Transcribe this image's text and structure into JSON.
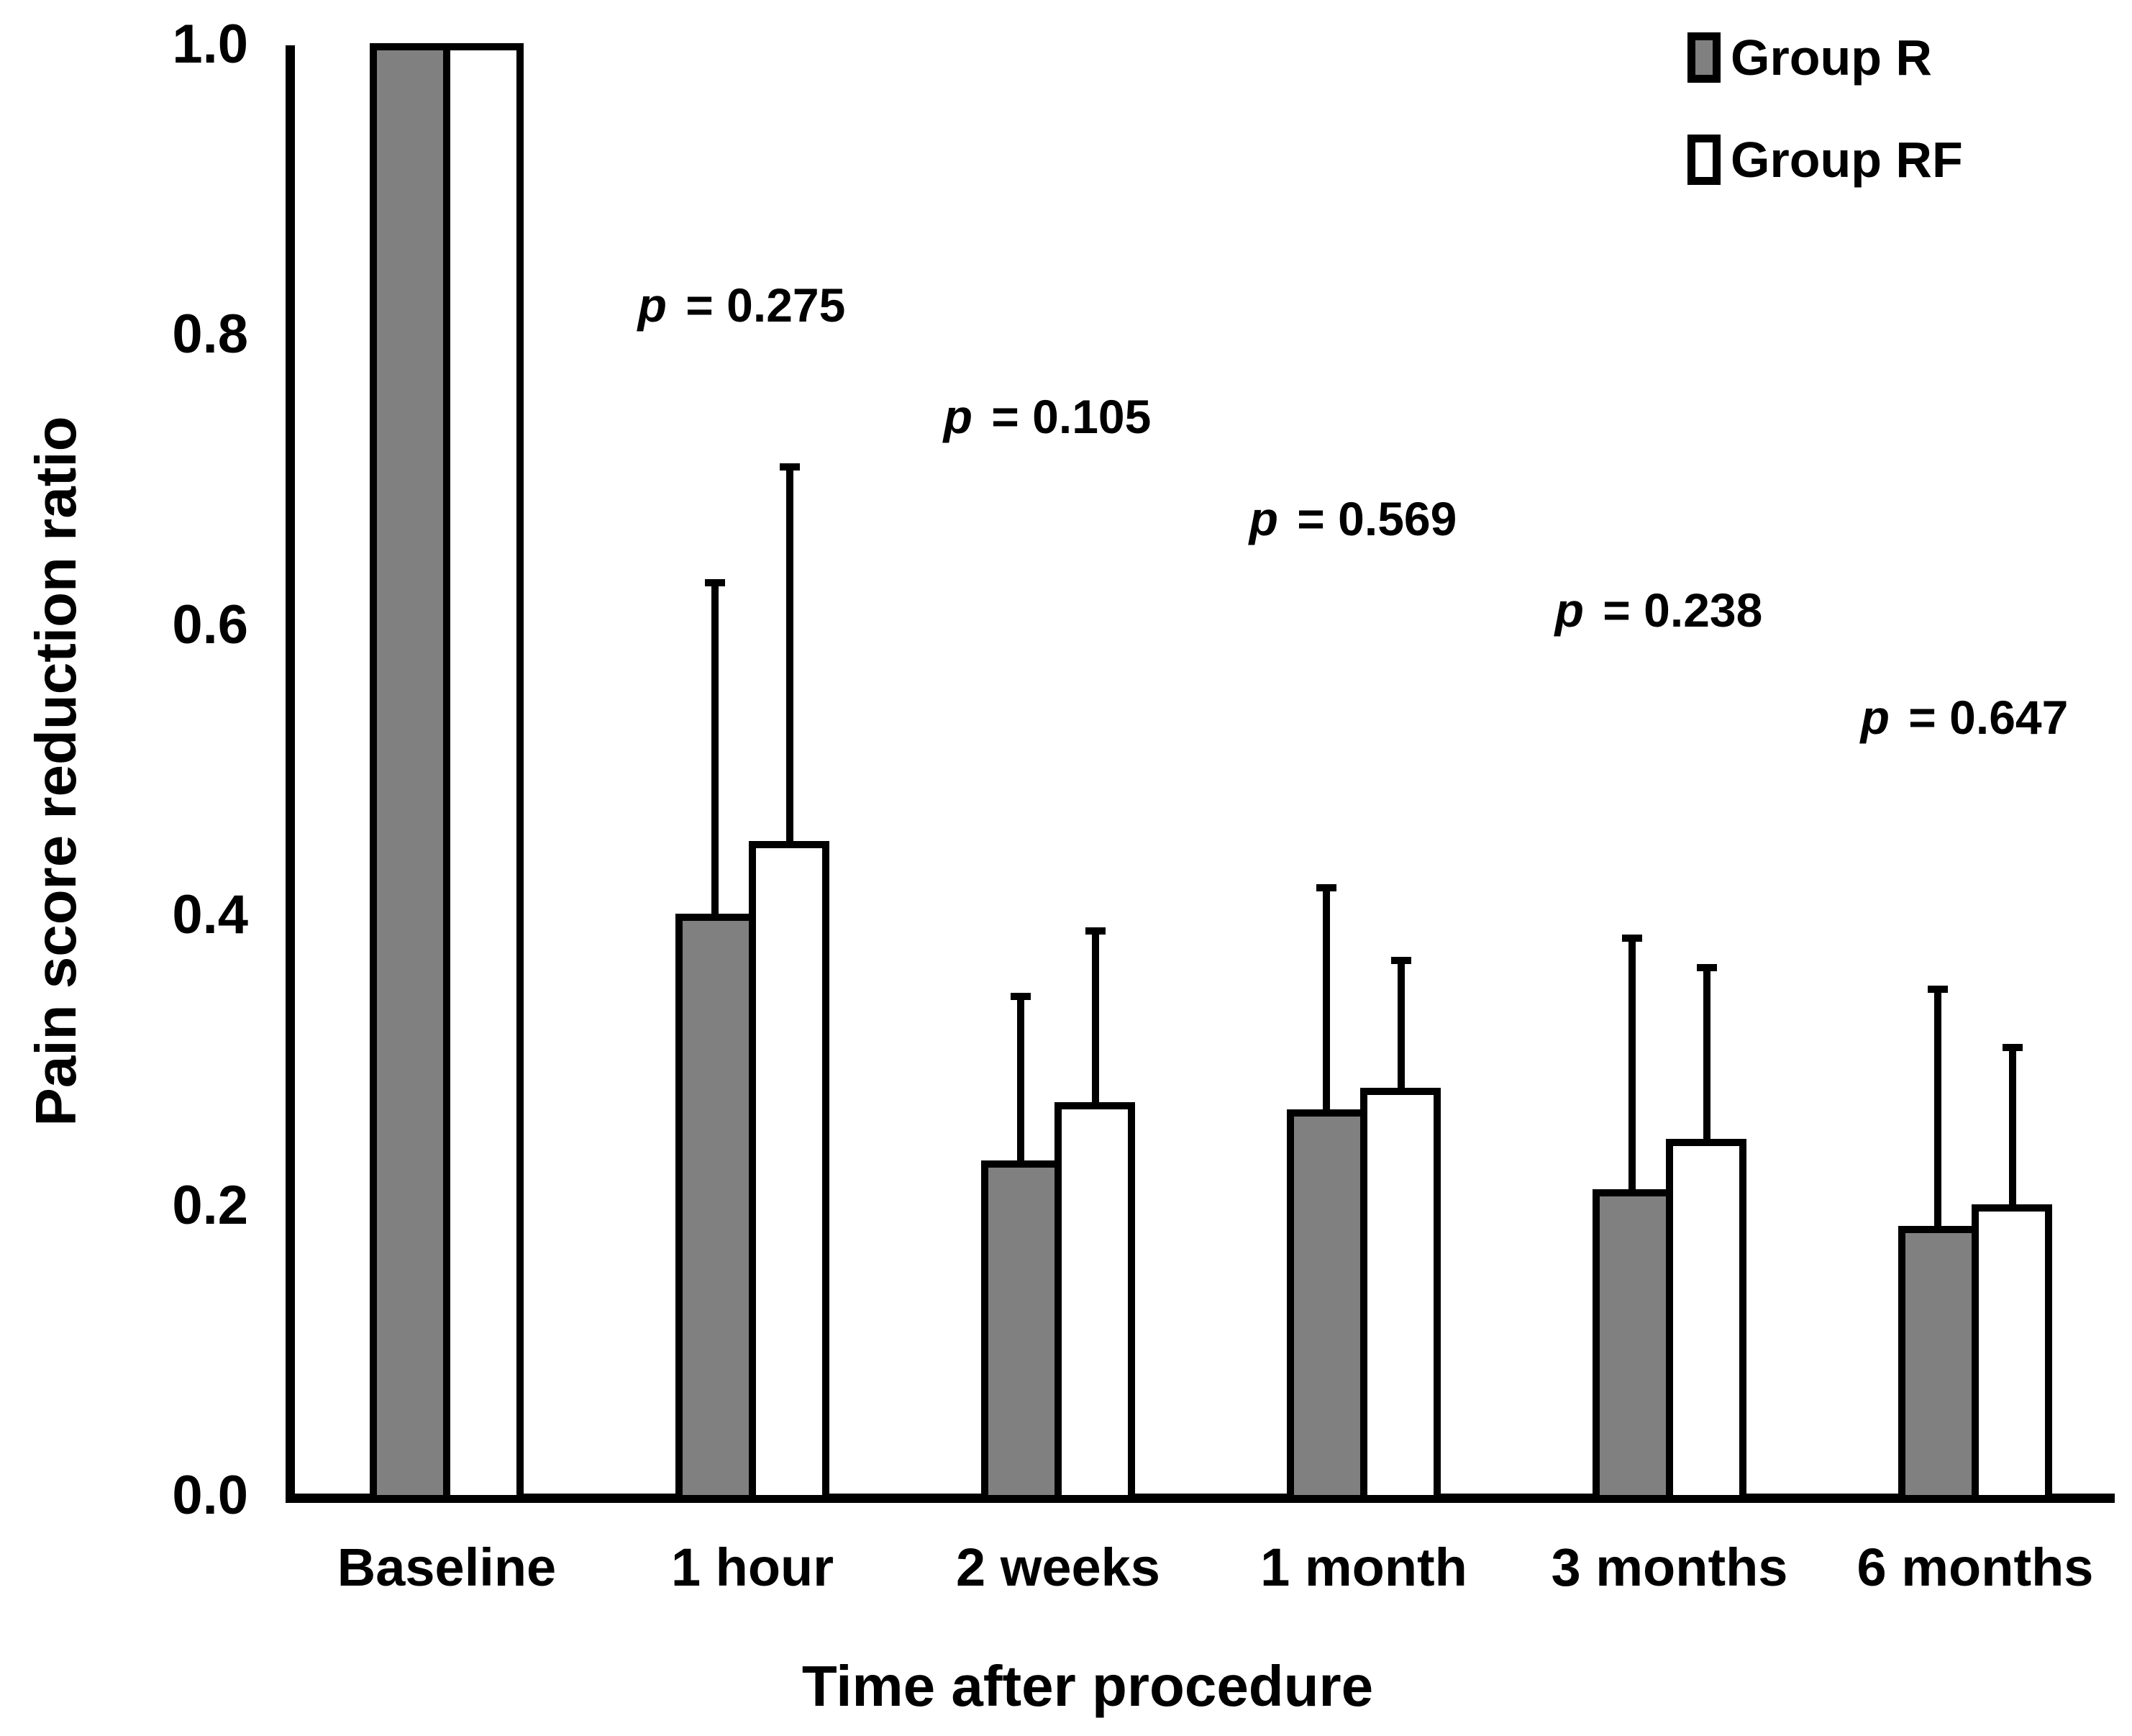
{
  "figure": {
    "background": "#ffffff",
    "axis_color": "#000000",
    "text_color": "#000000"
  },
  "chart_data": {
    "type": "bar",
    "title": "",
    "xlabel": "Time after procedure",
    "ylabel": "Pain score reduction ratio",
    "categories": [
      "Baseline",
      "1 hour",
      "2 weeks",
      "1 month",
      "3 months",
      "6 months"
    ],
    "y_ticks": [
      {
        "label": "1.0",
        "value": 1.0
      },
      {
        "label": "0.8",
        "value": 0.8
      },
      {
        "label": "0.6",
        "value": 0.6
      },
      {
        "label": "0.4",
        "value": 0.4
      },
      {
        "label": "0.2",
        "value": 0.2
      },
      {
        "label": "0.0",
        "value": 0.0
      }
    ],
    "ylim": [
      0,
      1
    ],
    "grid": false,
    "legend_position": "top-right",
    "bar_fill_gray": "#808080",
    "bar_fill_white": "#ffffff",
    "series": [
      {
        "name": "Group R",
        "fill": "#808080",
        "values": [
          1.0,
          0.4,
          0.23,
          0.265,
          0.21,
          0.185
        ],
        "error_up": [
          0,
          0.23,
          0.115,
          0.155,
          0.175,
          0.165
        ]
      },
      {
        "name": "Group RF",
        "fill": "#ffffff",
        "values": [
          1.0,
          0.45,
          0.27,
          0.28,
          0.245,
          0.2
        ],
        "error_up": [
          0,
          0.26,
          0.12,
          0.09,
          0.12,
          0.11
        ]
      }
    ],
    "annotations": [
      {
        "prefix": "p",
        "text": "= 0.275",
        "category_index": 1,
        "y_value": 0.822
      },
      {
        "prefix": "p",
        "text": "= 0.105",
        "category_index": 2,
        "y_value": 0.745
      },
      {
        "prefix": "p",
        "text": "= 0.569",
        "category_index": 3,
        "y_value": 0.675
      },
      {
        "prefix": "p",
        "text": "= 0.238",
        "category_index": 4,
        "y_value": 0.612
      },
      {
        "prefix": "p",
        "text": "= 0.647",
        "category_index": 5,
        "y_value": 0.538
      }
    ]
  },
  "legend": {
    "items": [
      {
        "label": "Group R",
        "fill": "#808080"
      },
      {
        "label": "Group RF",
        "fill": "#ffffff"
      }
    ]
  }
}
